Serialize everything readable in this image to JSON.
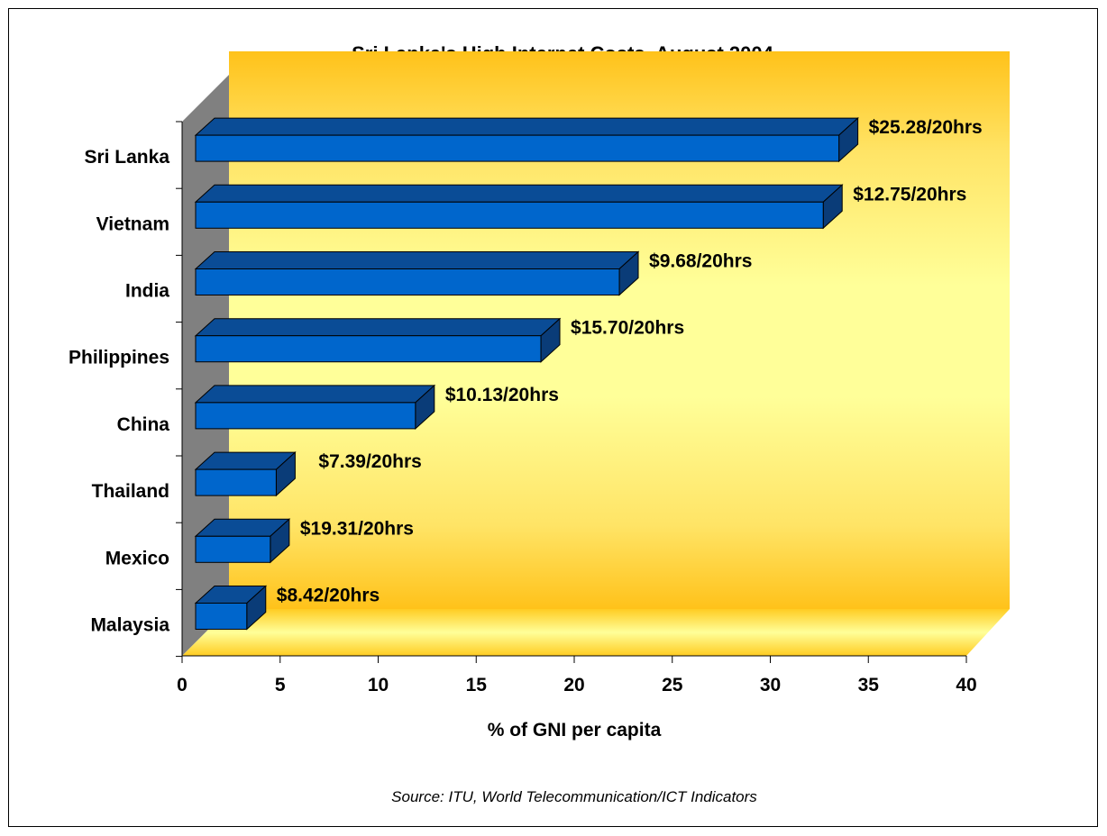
{
  "chart_data": {
    "type": "bar",
    "orientation": "horizontal",
    "title": "Sri Lanka's High Internet Costs, August 2004",
    "xlabel": "% of GNI per capita",
    "source": "Source: ITU, World Telecommunication/ICT Indicators",
    "xlim": [
      0,
      40
    ],
    "xticks": [
      "0",
      "5",
      "10",
      "15",
      "20",
      "25",
      "30",
      "35",
      "40"
    ],
    "categories": [
      "Sri Lanka",
      "Vietnam",
      "India",
      "Philippines",
      "China",
      "Thailand",
      "Mexico",
      "Malaysia"
    ],
    "values": [
      33.5,
      32.7,
      22.3,
      18.3,
      11.9,
      4.8,
      4.5,
      3.3
    ],
    "data_labels": [
      "$25.28/20hrs",
      "$12.75/20hrs",
      "$9.68/20hrs",
      "$15.70/20hrs",
      "$10.13/20hrs",
      "$7.39/20hrs",
      "$19.31/20hrs",
      "$8.42/20hrs"
    ],
    "grid": false,
    "legend": "none",
    "colors": {
      "bar_front": "#0066cc",
      "bar_top": "#0a4c96",
      "bar_side": "#0a3c78",
      "wall_top": "#ffc21a",
      "wall_mid": "#ffff99",
      "side_wall": "#808080",
      "floor": "#ffe066"
    }
  }
}
